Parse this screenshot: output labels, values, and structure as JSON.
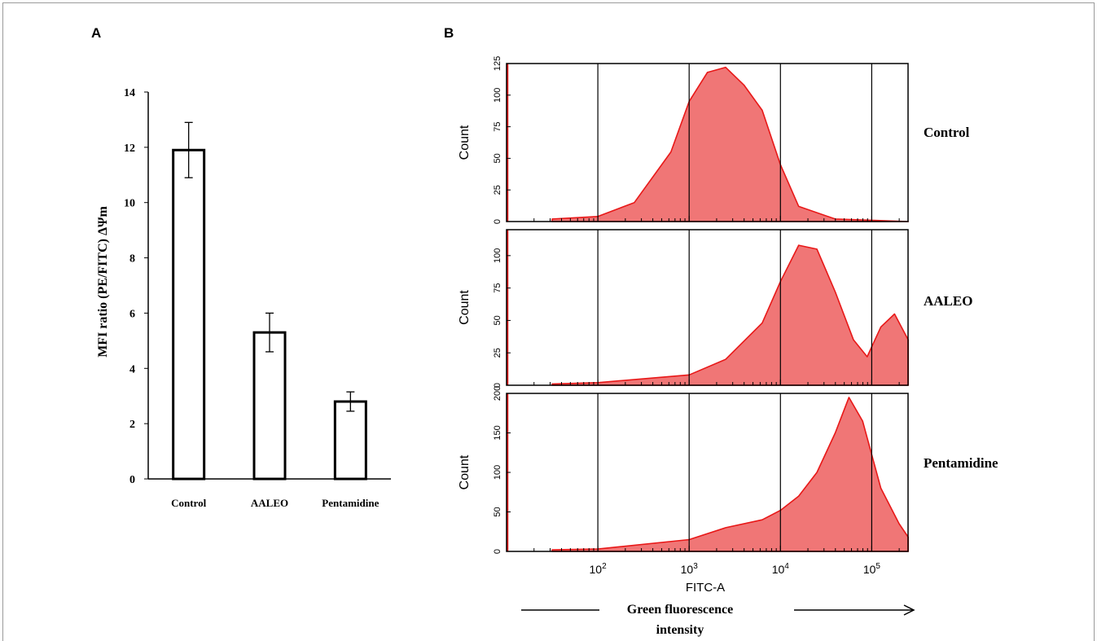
{
  "panels": {
    "a_label": "A",
    "b_label": "B"
  },
  "bar_labels": {
    "ylabel": "MFI ratio (PE/FITC) ΔΨm"
  },
  "hist_labels": {
    "ylabel": "Count",
    "xlabel": "FITC-A",
    "green_line1": "Green fluorescence",
    "green_line2": "intensity"
  },
  "colors": {
    "hist_fill": "#f07676",
    "hist_line": "#e81818"
  },
  "chart_data": [
    {
      "type": "bar",
      "categories": [
        "Control",
        "AALEO",
        "Pentamidine"
      ],
      "values": [
        11.9,
        5.3,
        2.8
      ],
      "errors": [
        1.0,
        0.7,
        0.35
      ],
      "ylabel": "MFI ratio (PE/FITC) ΔΨm",
      "ylim": [
        0,
        14
      ],
      "yticks": [
        0,
        2,
        4,
        6,
        8,
        10,
        12,
        14
      ],
      "grid": false
    },
    {
      "type": "area",
      "xscale": "log",
      "xlim": [
        10,
        250000
      ],
      "xticks": [
        "10^2",
        "10^3",
        "10^4",
        "10^5"
      ],
      "xlabel": "FITC-A",
      "ylabel": "Count",
      "series": [
        {
          "name": "Control",
          "ylim": [
            0,
            125
          ],
          "yticks": [
            0,
            25,
            50,
            75,
            100,
            125
          ],
          "log_x": [
            1.5,
            2.0,
            2.4,
            2.8,
            3.0,
            3.2,
            3.4,
            3.6,
            3.8,
            4.0,
            4.2,
            4.6,
            5.0,
            5.4
          ],
          "counts": [
            2,
            4,
            15,
            55,
            95,
            118,
            122,
            108,
            88,
            45,
            12,
            2,
            1,
            0
          ]
        },
        {
          "name": "AALEO",
          "ylim": [
            0,
            120
          ],
          "yticks": [
            0,
            25,
            50,
            75,
            100
          ],
          "log_x": [
            1.5,
            2.0,
            3.0,
            3.4,
            3.8,
            4.0,
            4.2,
            4.4,
            4.6,
            4.8,
            4.95,
            5.1,
            5.25,
            5.4
          ],
          "counts": [
            1,
            2,
            8,
            20,
            48,
            80,
            108,
            105,
            72,
            35,
            22,
            45,
            55,
            35
          ]
        },
        {
          "name": "Pentamidine",
          "ylim": [
            0,
            200
          ],
          "yticks": [
            0,
            50,
            100,
            150,
            200
          ],
          "log_x": [
            1.5,
            2.0,
            3.0,
            3.4,
            3.8,
            4.0,
            4.2,
            4.4,
            4.6,
            4.75,
            4.9,
            5.1,
            5.3,
            5.4
          ],
          "counts": [
            2,
            3,
            15,
            30,
            40,
            52,
            70,
            100,
            150,
            195,
            165,
            80,
            35,
            18
          ]
        }
      ]
    }
  ]
}
